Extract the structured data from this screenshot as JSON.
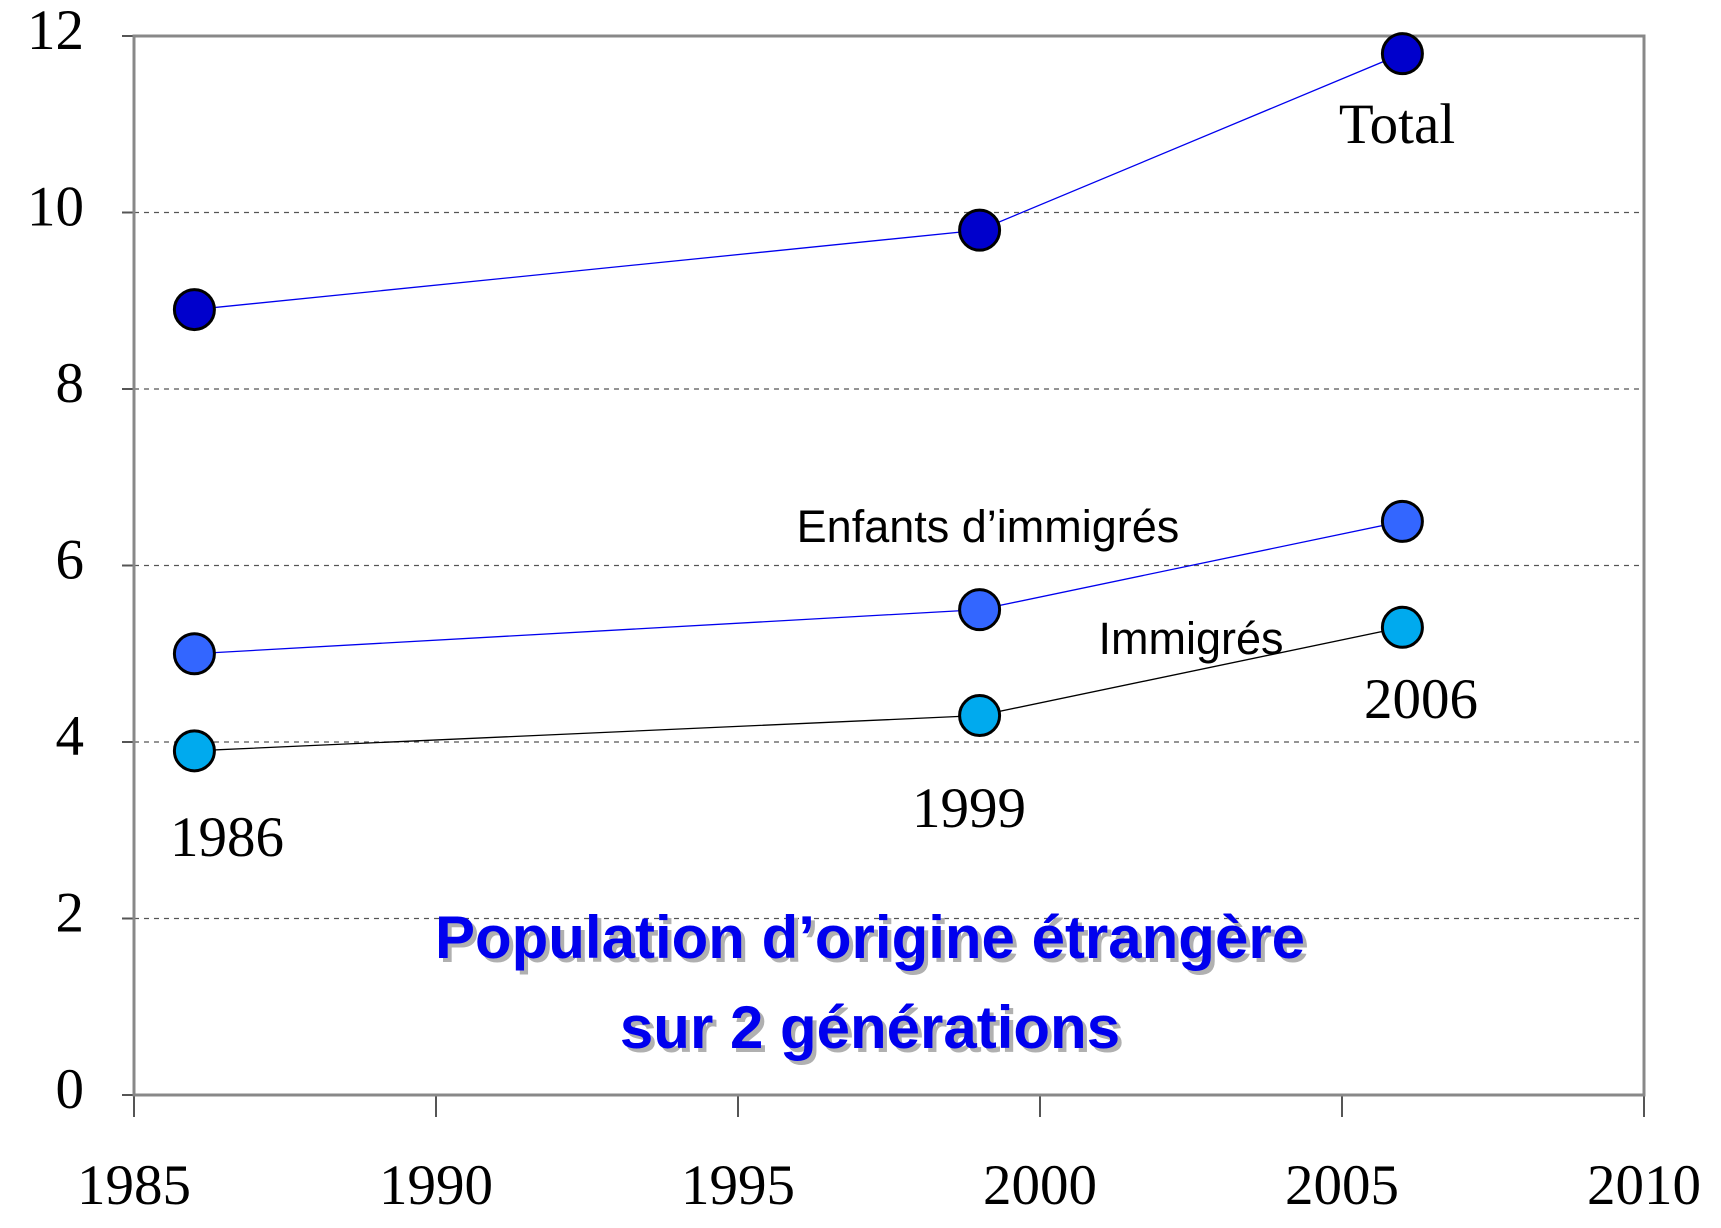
{
  "chart_data": {
    "type": "line",
    "title": [
      "Population d’origine étrangère",
      "sur 2 générations"
    ],
    "x": [
      1986,
      1999,
      2006
    ],
    "series": [
      {
        "name": "Total",
        "color": "#0000cc",
        "line_color": "#0000ee",
        "values": [
          8.9,
          9.8,
          11.8
        ]
      },
      {
        "name": "Enfants d’immigrés",
        "color": "#3366ff",
        "line_color": "#0000ee",
        "values": [
          5.0,
          5.5,
          6.5
        ]
      },
      {
        "name": "Immigrés",
        "color": "#00aaee",
        "line_color": "#000000",
        "values": [
          3.9,
          4.3,
          5.3
        ]
      }
    ],
    "annotations": [
      "1986",
      "1999",
      "2006"
    ],
    "xlim": [
      1985,
      2010
    ],
    "xticks": [
      1985,
      1990,
      1995,
      2000,
      2005,
      2010
    ],
    "ylim": [
      0,
      12
    ],
    "yticks": [
      0,
      2,
      4,
      6,
      8,
      10,
      12
    ],
    "grid": true
  }
}
